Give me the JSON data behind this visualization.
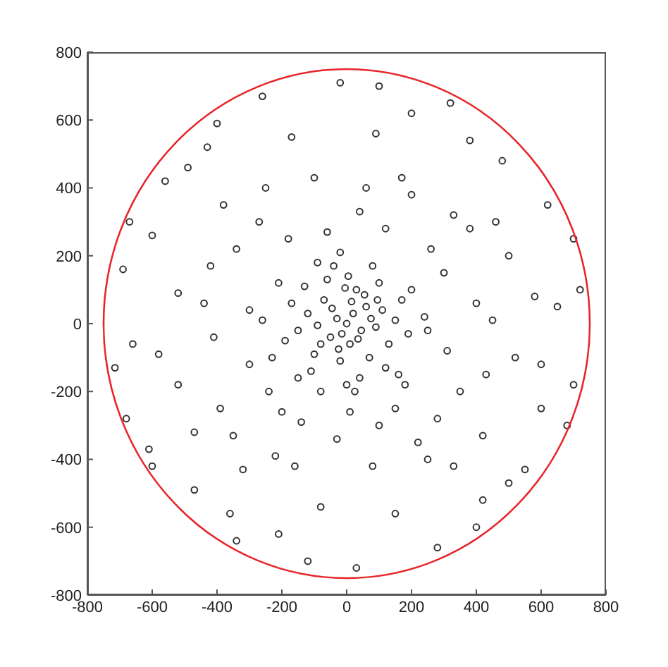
{
  "chart_data": {
    "type": "scatter",
    "xlim": [
      -800,
      800
    ],
    "ylim": [
      -800,
      800
    ],
    "xticks": [
      -800,
      -600,
      -400,
      -200,
      0,
      200,
      400,
      600,
      800
    ],
    "yticks": [
      -800,
      -600,
      -400,
      -200,
      0,
      200,
      400,
      600,
      800
    ],
    "grid": false,
    "series": [
      {
        "type": "scatter",
        "marker": "circle",
        "color": "#333333",
        "x": [
          0,
          20,
          -30,
          45,
          -50,
          10,
          60,
          -70,
          90,
          -90,
          30,
          -20,
          110,
          -120,
          5,
          70,
          -100,
          130,
          -60,
          150,
          -150,
          40,
          -40,
          100,
          -130,
          120,
          -110,
          170,
          -170,
          0,
          15,
          -15,
          35,
          -45,
          75,
          -80,
          55,
          -25,
          95,
          -5,
          190,
          -190,
          80,
          -90,
          160,
          -150,
          25,
          -20,
          200,
          -210,
          250,
          -260,
          300,
          -300,
          120,
          -140,
          350,
          -340,
          40,
          -30,
          400,
          -410,
          280,
          -270,
          200,
          -220,
          430,
          -420,
          80,
          -100,
          330,
          -350,
          150,
          -180,
          260,
          -240,
          -200,
          220,
          -300,
          310,
          100,
          -60,
          380,
          -390,
          10,
          60,
          -380,
          420,
          -160,
          170,
          -440,
          450,
          250,
          -250,
          330,
          -320,
          -80,
          180,
          -230,
          240,
          500,
          -520,
          200,
          -210,
          600,
          -600,
          650,
          -660,
          100,
          -120,
          480,
          -470,
          500,
          -490,
          700,
          -690,
          320,
          -340,
          620,
          -610,
          550,
          -560,
          30,
          -20,
          720,
          -715,
          400,
          -400,
          280,
          -260,
          680,
          -670,
          580,
          -580,
          460,
          -470,
          380,
          -360,
          150,
          -170,
          520,
          -520,
          700,
          -680,
          600,
          -600,
          420,
          -430,
          90,
          -80
        ],
        "values": [
          0,
          30,
          15,
          -20,
          -40,
          -60,
          50,
          70,
          -10,
          -5,
          100,
          -110,
          40,
          30,
          140,
          -100,
          -90,
          -60,
          130,
          10,
          -20,
          -160,
          170,
          120,
          110,
          -130,
          -140,
          70,
          60,
          -180,
          65,
          -30,
          -45,
          45,
          15,
          -60,
          85,
          -75,
          70,
          105,
          -30,
          -50,
          170,
          180,
          -150,
          -160,
          -200,
          210,
          100,
          120,
          -20,
          10,
          150,
          -120,
          280,
          -290,
          -200,
          220,
          330,
          -340,
          60,
          -40,
          -280,
          300,
          380,
          -390,
          -150,
          170,
          -420,
          430,
          320,
          -330,
          -250,
          250,
          220,
          -200,
          -260,
          -350,
          40,
          -80,
          -300,
          270,
          280,
          -250,
          -260,
          400,
          350,
          -330,
          -420,
          430,
          60,
          10,
          -400,
          400,
          -420,
          -430,
          -200,
          -180,
          -100,
          20,
          200,
          -180,
          620,
          -620,
          -250,
          260,
          50,
          -60,
          700,
          -700,
          480,
          -490,
          -470,
          460,
          -180,
          160,
          650,
          -640,
          350,
          -370,
          -430,
          420,
          -720,
          710,
          100,
          -130,
          -600,
          590,
          -660,
          670,
          -300,
          300,
          80,
          -90,
          300,
          -320,
          540,
          -560,
          -560,
          550,
          -100,
          90,
          250,
          -280,
          -120,
          -420,
          -520,
          520,
          560,
          -540
        ]
      }
    ]
  }
}
